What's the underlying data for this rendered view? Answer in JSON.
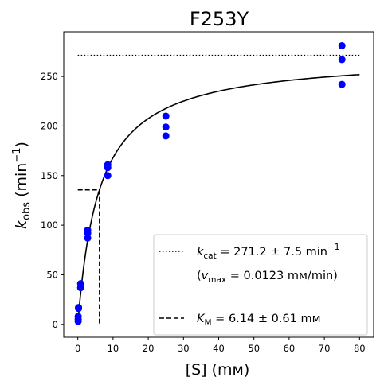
{
  "chart_data": {
    "type": "scatter",
    "title": "F253Y",
    "xlabel": "[S] (mм)",
    "ylabel": "k_obs (min^-1)",
    "ylabel_main": "k",
    "ylabel_sub": "obs",
    "ylabel_unit": " (min",
    "ylabel_sup": "−1",
    "ylabel_close": ")",
    "xlim": [
      -4,
      84
    ],
    "ylim": [
      -13,
      295
    ],
    "x_ticks": [
      0,
      10,
      20,
      30,
      40,
      50,
      60,
      70,
      80
    ],
    "y_ticks": [
      0,
      50,
      100,
      150,
      200,
      250
    ],
    "grid": false,
    "legend_position": "lower-right",
    "point_color": "#0000ff",
    "points": [
      {
        "x": 0.1,
        "y": 3
      },
      {
        "x": 0.1,
        "y": 5
      },
      {
        "x": 0.1,
        "y": 8
      },
      {
        "x": 0.2,
        "y": 16
      },
      {
        "x": 0.2,
        "y": 17
      },
      {
        "x": 0.8,
        "y": 37
      },
      {
        "x": 0.8,
        "y": 41
      },
      {
        "x": 2.8,
        "y": 87
      },
      {
        "x": 2.8,
        "y": 92
      },
      {
        "x": 2.8,
        "y": 95
      },
      {
        "x": 8.5,
        "y": 150
      },
      {
        "x": 8.5,
        "y": 158
      },
      {
        "x": 8.5,
        "y": 161
      },
      {
        "x": 25,
        "y": 190
      },
      {
        "x": 25,
        "y": 199
      },
      {
        "x": 25,
        "y": 210
      },
      {
        "x": 75,
        "y": 242
      },
      {
        "x": 75,
        "y": 267
      },
      {
        "x": 75,
        "y": 281
      }
    ],
    "fit": {
      "kcat": 271.2,
      "KM": 6.14,
      "x_start": 0,
      "x_end": 80
    },
    "kcat_line": {
      "y": 271.2,
      "x_start": 0,
      "x_end": 80
    },
    "km_marker": {
      "x": 6.14,
      "y": 135.6
    },
    "legend": [
      {
        "style": "dotted",
        "prefix": "k",
        "sub": "cat",
        "text": " = 271.2 ± 7.5 min",
        "sup": "−1"
      },
      {
        "style": "none",
        "text_a": "(",
        "italic": "v",
        "sub": "max",
        "text_b": " = 0.0123 mм/min)"
      },
      {
        "style": "dashed",
        "prefix": "K",
        "sub": "M",
        "text": " = 6.14 ± 0.61 mм"
      }
    ]
  }
}
